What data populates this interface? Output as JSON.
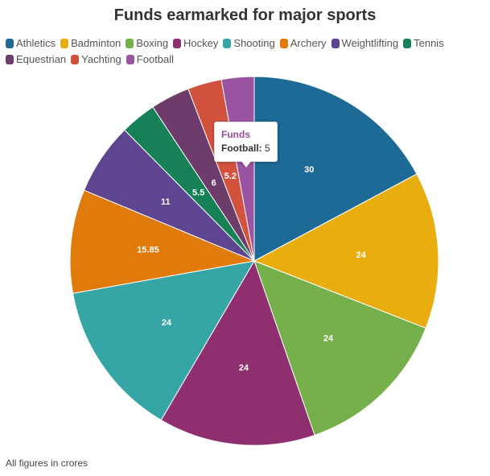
{
  "title": "Funds earmarked for major sports",
  "footnote": "All figures in crores",
  "tooltip": {
    "heading": "Funds",
    "series": "Football:",
    "value": "5",
    "heading_color": "#9b4b9b"
  },
  "chart_data": {
    "type": "pie",
    "title": "Funds earmarked for major sports",
    "legend_position": "top",
    "start_angle": "12 o'clock",
    "direction": "clockwise",
    "slices": [
      {
        "label": "Athletics",
        "value": 30,
        "display": "30",
        "color": "#1d6a96"
      },
      {
        "label": "Badminton",
        "value": 24,
        "display": "24",
        "color": "#e8ad0f"
      },
      {
        "label": "Boxing",
        "value": 24,
        "display": "24",
        "color": "#76b04a"
      },
      {
        "label": "Hockey",
        "value": 24,
        "display": "24",
        "color": "#8f2f6f"
      },
      {
        "label": "Shooting",
        "value": 24,
        "display": "24",
        "color": "#36a5a6"
      },
      {
        "label": "Archery",
        "value": 15.85,
        "display": "15.85",
        "color": "#e07b0b"
      },
      {
        "label": "Weightlifting",
        "value": 11,
        "display": "11",
        "color": "#5e4591"
      },
      {
        "label": "Tennis",
        "value": 5.5,
        "display": "5.5",
        "color": "#168056"
      },
      {
        "label": "Equestrian",
        "value": 6,
        "display": "6",
        "color": "#6d3c6b"
      },
      {
        "label": "Yachting",
        "value": 5.2,
        "display": "5.2",
        "color": "#d2523e"
      },
      {
        "label": "Football",
        "value": 5,
        "display": "",
        "color": "#9b55a0"
      }
    ]
  }
}
